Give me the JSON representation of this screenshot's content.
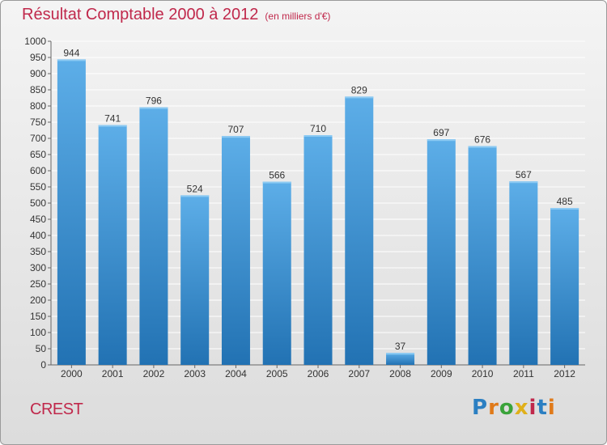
{
  "header": {
    "title": "Résultat Comptable 2000 à 2012",
    "subtitle": "(en milliers d'€)"
  },
  "footer": {
    "commune": "CREST",
    "logo_text": "Proxiti",
    "logo_colors": [
      "#2b7fc2",
      "#e07a1a",
      "#3aa33a",
      "#e0b01a",
      "#c0284b",
      "#2b7fc2",
      "#e07a1a"
    ]
  },
  "colors": {
    "bar_top": "#5daee8",
    "bar_bottom": "#2272b3",
    "title": "#c0284b",
    "grid": "#ffffff"
  },
  "chart_data": {
    "type": "bar",
    "title": "Résultat Comptable 2000 à 2012",
    "xlabel": "",
    "ylabel": "",
    "categories": [
      "2000",
      "2001",
      "2002",
      "2003",
      "2004",
      "2005",
      "2006",
      "2007",
      "2008",
      "2009",
      "2010",
      "2011",
      "2012"
    ],
    "values": [
      944,
      741,
      796,
      524,
      707,
      566,
      710,
      829,
      37,
      697,
      676,
      567,
      485
    ],
    "ylim": [
      0,
      1000
    ],
    "ytick_step": 50,
    "grid": true
  }
}
